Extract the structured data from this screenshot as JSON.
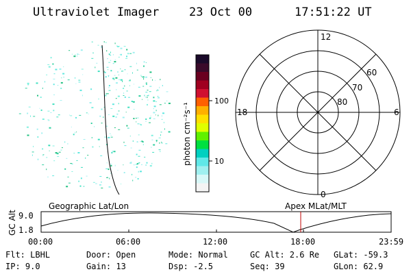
{
  "header": {
    "title": "Ultraviolet Imager",
    "date": "23 Oct 00",
    "time": "17:51:22 UT"
  },
  "colorbar": {
    "label": "photon cm⁻²s⁻¹",
    "ticks": [
      "100",
      "10"
    ],
    "colors": [
      "#1a0a2a",
      "#3a0a2a",
      "#6a0020",
      "#a00020",
      "#d01030",
      "#ff6000",
      "#ffb000",
      "#ffe000",
      "#e0ff00",
      "#60f000",
      "#00e040",
      "#00d0c0",
      "#60e8e8",
      "#a0f0f0",
      "#d8f8f8",
      "#f4f4f4"
    ]
  },
  "polar": {
    "mlt_labels": [
      "12",
      "18",
      "6",
      "0"
    ],
    "lat_labels": [
      "60",
      "70",
      "80"
    ]
  },
  "timeline": {
    "ylabel": "GC Alt",
    "y_ticks": [
      "9.0",
      "1.8"
    ],
    "left_caption": "Geographic Lat/Lon",
    "right_caption": "Apex MLat/MLT",
    "x_ticks": [
      "00:00",
      "06:00",
      "12:00",
      "18:00",
      "23:59"
    ],
    "marker_color": "#c00000"
  },
  "footer": {
    "flt": "Flt: LBHL",
    "ip": "IP:  9.0",
    "door": "Door: Open",
    "gain": "Gain: 13",
    "mode": "Mode: Normal",
    "dsp": "Dsp:    -2.5",
    "gcalt": "GC Alt: 2.6 Re",
    "seq": "Seq: 39",
    "glat": "GLat: -59.3",
    "glon": "GLon:  62.9"
  }
}
